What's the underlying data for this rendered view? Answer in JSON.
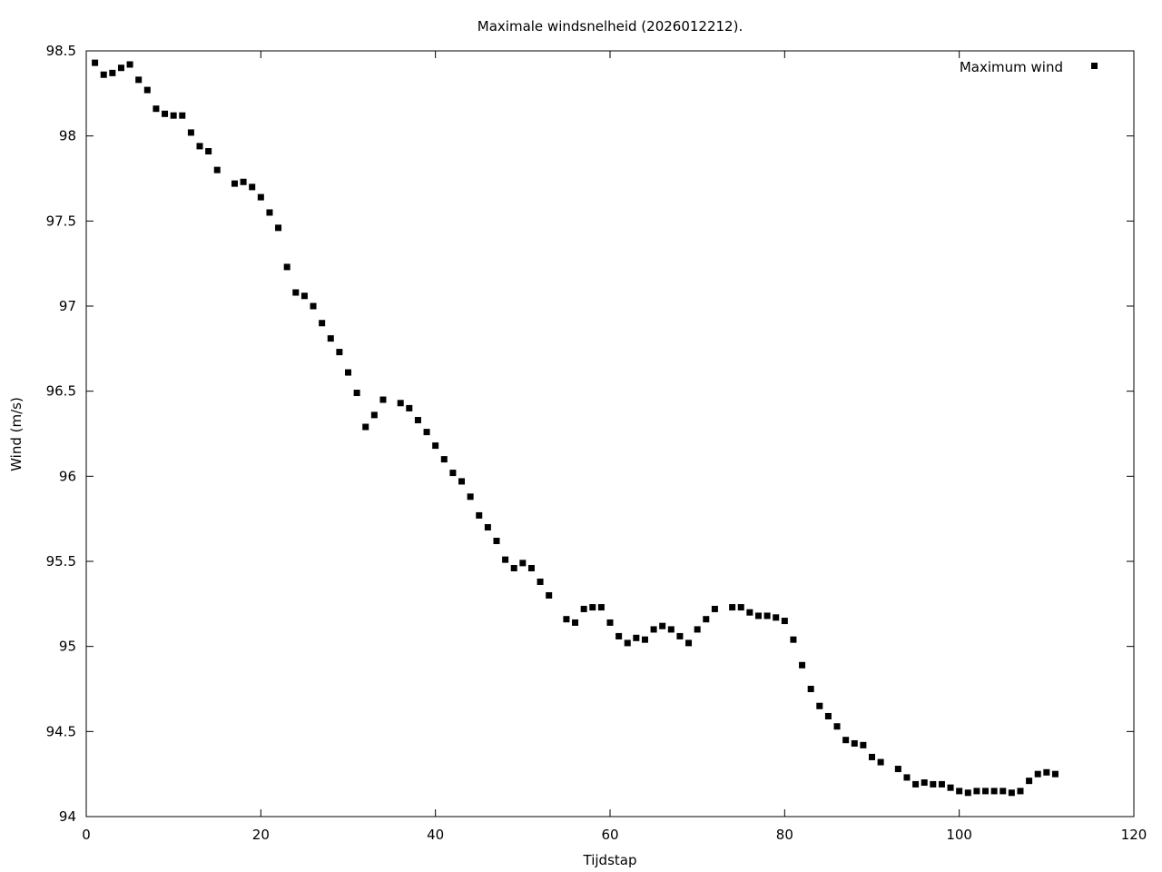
{
  "chart_data": {
    "type": "scatter",
    "title": "Maximale windsnelheid (2026012212).",
    "xlabel": "Tijdstap",
    "ylabel": "Wind (m/s)",
    "xlim": [
      0,
      120
    ],
    "ylim": [
      94,
      98.5
    ],
    "xticks": [
      0,
      20,
      40,
      60,
      80,
      100,
      120
    ],
    "yticks": [
      94,
      94.5,
      95,
      95.5,
      96,
      96.5,
      97,
      97.5,
      98,
      98.5
    ],
    "xtick_labels": [
      "0",
      "20",
      "40",
      "60",
      "80",
      "100",
      "120"
    ],
    "ytick_labels": [
      "94",
      "94.5",
      "95",
      "95.5",
      "96",
      "96.5",
      "97",
      "97.5",
      "98",
      "98.5"
    ],
    "grid": false,
    "legend_position": "top-right",
    "marker_color": "#000000",
    "series": [
      {
        "name": "Maximum wind",
        "marker": "square",
        "x": [
          1,
          2,
          3,
          4,
          5,
          6,
          7,
          8,
          9,
          10,
          11,
          12,
          13,
          14,
          15,
          17,
          18,
          19,
          20,
          21,
          22,
          23,
          24,
          25,
          26,
          27,
          28,
          29,
          30,
          31,
          32,
          33,
          34,
          36,
          37,
          38,
          39,
          40,
          41,
          42,
          43,
          44,
          45,
          46,
          47,
          48,
          49,
          50,
          51,
          52,
          53,
          55,
          56,
          57,
          58,
          59,
          60,
          61,
          62,
          63,
          64,
          65,
          66,
          67,
          68,
          69,
          70,
          71,
          72,
          74,
          75,
          76,
          77,
          78,
          79,
          80,
          81,
          82,
          83,
          84,
          85,
          86,
          87,
          88,
          89,
          90,
          91,
          93,
          94,
          95,
          96,
          97,
          98,
          99,
          100,
          101,
          102,
          103,
          104,
          105,
          106,
          107,
          108,
          109,
          110,
          111
        ],
        "y": [
          98.43,
          98.36,
          98.37,
          98.4,
          98.42,
          98.33,
          98.27,
          98.16,
          98.13,
          98.12,
          98.12,
          98.02,
          97.94,
          97.91,
          97.8,
          97.72,
          97.73,
          97.7,
          97.64,
          97.55,
          97.46,
          97.23,
          97.08,
          97.06,
          97.0,
          96.9,
          96.81,
          96.73,
          96.61,
          96.49,
          96.29,
          96.36,
          96.45,
          96.43,
          96.4,
          96.33,
          96.26,
          96.18,
          96.1,
          96.02,
          95.97,
          95.88,
          95.77,
          95.7,
          95.62,
          95.51,
          95.46,
          95.49,
          95.46,
          95.38,
          95.3,
          95.16,
          95.14,
          95.22,
          95.23,
          95.23,
          95.14,
          95.06,
          95.02,
          95.05,
          95.04,
          95.1,
          95.12,
          95.1,
          95.06,
          95.02,
          95.1,
          95.16,
          95.22,
          95.23,
          95.23,
          95.2,
          95.18,
          95.18,
          95.17,
          95.15,
          95.04,
          94.89,
          94.75,
          94.65,
          94.59,
          94.53,
          94.45,
          94.43,
          94.42,
          94.35,
          94.32,
          94.28,
          94.23,
          94.19,
          94.2,
          94.19,
          94.19,
          94.17,
          94.15,
          94.14,
          94.15,
          94.15,
          94.15,
          94.15,
          94.14,
          94.15,
          94.21,
          94.25,
          94.26,
          94.25
        ]
      }
    ]
  }
}
